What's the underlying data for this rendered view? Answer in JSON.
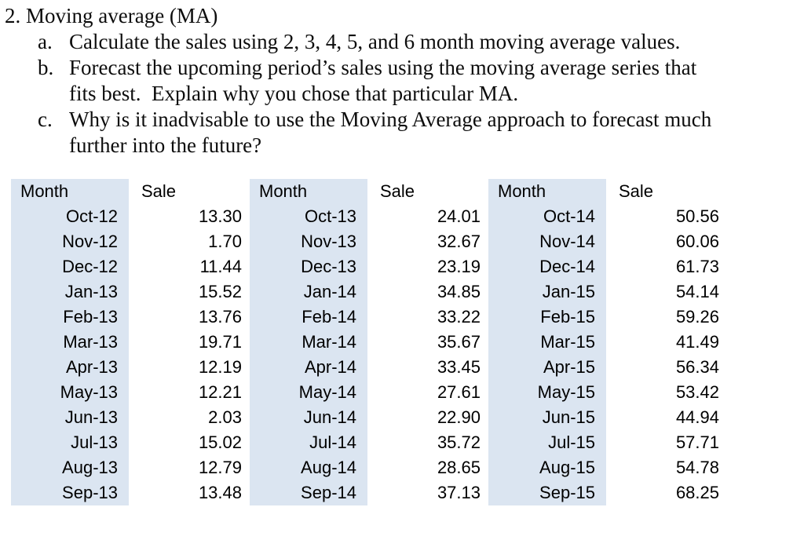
{
  "problem": {
    "title": "2. Moving average (MA)",
    "items": [
      {
        "label": "a.",
        "lines": [
          "Calculate the sales using 2, 3, 4, 5, and 6 month moving average values."
        ]
      },
      {
        "label": "b.",
        "lines": [
          "Forecast the upcoming period’s sales using the moving average series that",
          "fits best.  Explain why you chose that particular MA."
        ]
      },
      {
        "label": "c.",
        "lines": [
          "Why is it inadvisable to use the Moving Average approach to forecast much",
          "further into the future?"
        ]
      }
    ]
  },
  "tables": {
    "month_header": "Month",
    "sale_header": "Sale",
    "month_column_bg": "#dbe5f1",
    "text_color": "#000000",
    "groups": [
      {
        "rows": [
          {
            "month": "Oct-12",
            "sale": "13.30"
          },
          {
            "month": "Nov-12",
            "sale": "1.70"
          },
          {
            "month": "Dec-12",
            "sale": "11.44"
          },
          {
            "month": "Jan-13",
            "sale": "15.52"
          },
          {
            "month": "Feb-13",
            "sale": "13.76"
          },
          {
            "month": "Mar-13",
            "sale": "19.71"
          },
          {
            "month": "Apr-13",
            "sale": "12.19"
          },
          {
            "month": "May-13",
            "sale": "12.21"
          },
          {
            "month": "Jun-13",
            "sale": "2.03"
          },
          {
            "month": "Jul-13",
            "sale": "15.02"
          },
          {
            "month": "Aug-13",
            "sale": "12.79"
          },
          {
            "month": "Sep-13",
            "sale": "13.48"
          }
        ]
      },
      {
        "rows": [
          {
            "month": "Oct-13",
            "sale": "24.01"
          },
          {
            "month": "Nov-13",
            "sale": "32.67"
          },
          {
            "month": "Dec-13",
            "sale": "23.19"
          },
          {
            "month": "Jan-14",
            "sale": "34.85"
          },
          {
            "month": "Feb-14",
            "sale": "33.22"
          },
          {
            "month": "Mar-14",
            "sale": "35.67"
          },
          {
            "month": "Apr-14",
            "sale": "33.45"
          },
          {
            "month": "May-14",
            "sale": "27.61"
          },
          {
            "month": "Jun-14",
            "sale": "22.90"
          },
          {
            "month": "Jul-14",
            "sale": "35.72"
          },
          {
            "month": "Aug-14",
            "sale": "28.65"
          },
          {
            "month": "Sep-14",
            "sale": "37.13"
          }
        ]
      },
      {
        "rows": [
          {
            "month": "Oct-14",
            "sale": "50.56"
          },
          {
            "month": "Nov-14",
            "sale": "60.06"
          },
          {
            "month": "Dec-14",
            "sale": "61.73"
          },
          {
            "month": "Jan-15",
            "sale": "54.14"
          },
          {
            "month": "Feb-15",
            "sale": "59.26"
          },
          {
            "month": "Mar-15",
            "sale": "41.49"
          },
          {
            "month": "Apr-15",
            "sale": "56.34"
          },
          {
            "month": "May-15",
            "sale": "53.42"
          },
          {
            "month": "Jun-15",
            "sale": "44.94"
          },
          {
            "month": "Jul-15",
            "sale": "57.71"
          },
          {
            "month": "Aug-15",
            "sale": "54.78"
          },
          {
            "month": "Sep-15",
            "sale": "68.25"
          }
        ]
      }
    ]
  }
}
